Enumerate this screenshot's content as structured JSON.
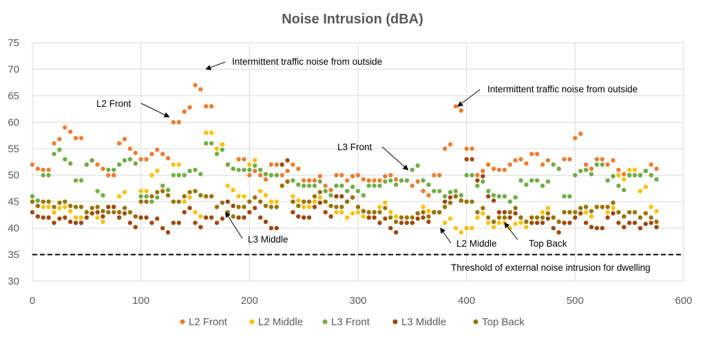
{
  "chart_data": {
    "type": "scatter",
    "title": "Noise Intrusion (dBA)",
    "xlabel": "",
    "ylabel": "",
    "xlim": [
      0,
      600
    ],
    "ylim": [
      30,
      75
    ],
    "x_ticks": [
      "0",
      "100",
      "200",
      "300",
      "400",
      "500",
      "600"
    ],
    "y_ticks": [
      "30",
      "35",
      "40",
      "45",
      "50",
      "55",
      "60",
      "65",
      "70",
      "75"
    ],
    "grid": true,
    "legend_position": "bottom",
    "x": [
      0,
      10,
      20,
      30,
      40,
      50,
      60,
      70,
      80,
      90,
      100,
      110,
      120,
      130,
      140,
      150,
      160,
      170,
      180,
      190,
      200,
      210,
      220,
      230,
      240,
      250,
      260,
      270,
      280,
      290,
      300,
      310,
      320,
      330,
      340,
      350,
      360,
      370,
      380,
      390,
      400,
      410,
      420,
      430,
      440,
      450,
      460,
      470,
      480,
      490,
      500,
      510,
      520,
      530,
      540,
      550,
      560,
      570
    ],
    "series": [
      {
        "name": "L2 Front",
        "color": "#ED7D31",
        "values": [
          52,
          51,
          56,
          59,
          57,
          52,
          52,
          50,
          56,
          55,
          53,
          54,
          54,
          60,
          62,
          67,
          63,
          55,
          52,
          53,
          50,
          50,
          52,
          50,
          52,
          49,
          49,
          48,
          50,
          49,
          50,
          49,
          49,
          50,
          49,
          48,
          47,
          50,
          55,
          63,
          55,
          50,
          52,
          51,
          52,
          53,
          54,
          52,
          52,
          53,
          57,
          52,
          53,
          52,
          51,
          50,
          50,
          52
        ]
      },
      {
        "name": "L2 Middle",
        "color": "#FFC000",
        "values": [
          45,
          44,
          43,
          44,
          42,
          43,
          42,
          44,
          46,
          43,
          47,
          50,
          48,
          52,
          45,
          43,
          58,
          55,
          48,
          46,
          52,
          47,
          45,
          48,
          46,
          44,
          45,
          47,
          43,
          42,
          43,
          42,
          44,
          43,
          42,
          41,
          44,
          43,
          41,
          40,
          40,
          42,
          41,
          41,
          40,
          41,
          42,
          43,
          42,
          43,
          42,
          43,
          44,
          43,
          50,
          51,
          47,
          44
        ]
      },
      {
        "name": "L3 Front",
        "color": "#70AD47",
        "values": [
          46,
          50,
          54,
          53,
          49,
          52,
          47,
          51,
          52,
          53,
          46,
          45,
          48,
          50,
          50,
          51,
          56,
          54,
          52,
          51,
          51,
          51,
          50,
          48,
          49,
          48,
          48,
          47,
          48,
          47,
          47,
          48,
          48,
          49,
          49,
          51,
          49,
          47,
          46,
          47,
          50,
          48,
          47,
          46,
          45,
          49,
          49,
          48,
          52,
          46,
          50,
          51,
          52,
          49,
          48,
          50,
          50,
          50
        ]
      },
      {
        "name": "L3 Middle",
        "color": "#9E480E",
        "values": [
          43,
          42,
          41,
          42,
          41,
          42,
          43,
          44,
          42,
          41,
          42,
          41,
          40,
          41,
          43,
          41,
          42,
          41,
          45,
          42,
          43,
          42,
          40,
          52,
          43,
          42,
          44,
          43,
          46,
          45,
          44,
          42,
          41,
          40,
          41,
          41,
          42,
          43,
          45,
          46,
          53,
          49,
          46,
          43,
          42,
          42,
          41,
          41,
          40,
          41,
          42,
          41,
          40,
          42,
          41,
          41,
          40,
          41
        ]
      },
      {
        "name": "Top Back",
        "color": "#997300",
        "values": [
          45,
          45,
          44,
          45,
          44,
          43,
          44,
          43,
          43,
          43,
          45,
          46,
          47,
          45,
          46,
          47,
          46,
          44,
          43,
          44,
          45,
          45,
          44,
          48,
          45,
          45,
          46,
          45,
          44,
          45,
          44,
          43,
          43,
          42,
          42,
          42,
          43,
          43,
          44,
          46,
          45,
          43,
          42,
          42,
          43,
          42,
          42,
          42,
          42,
          43,
          43,
          44,
          44,
          44,
          43,
          43,
          42,
          42
        ]
      }
    ],
    "threshold": {
      "value": 35,
      "label": "Threshold of external noise intrusion for dwelling"
    },
    "annotations": [
      {
        "text": "Intermittent traffic noise from outside",
        "points_to": [
          160,
          70
        ]
      },
      {
        "text": "L2 Front",
        "points_to": [
          126,
          61
        ]
      },
      {
        "text": "Intermittent traffic noise from outside",
        "points_to": [
          392,
          63
        ]
      },
      {
        "text": "L3 Front",
        "points_to": [
          346,
          51
        ]
      },
      {
        "text": "L3 Middle",
        "points_to": [
          178,
          43
        ]
      },
      {
        "text": "L2 Middle",
        "points_to": [
          376,
          40
        ]
      },
      {
        "text": "Top Back",
        "points_to": [
          435,
          41
        ]
      }
    ]
  }
}
